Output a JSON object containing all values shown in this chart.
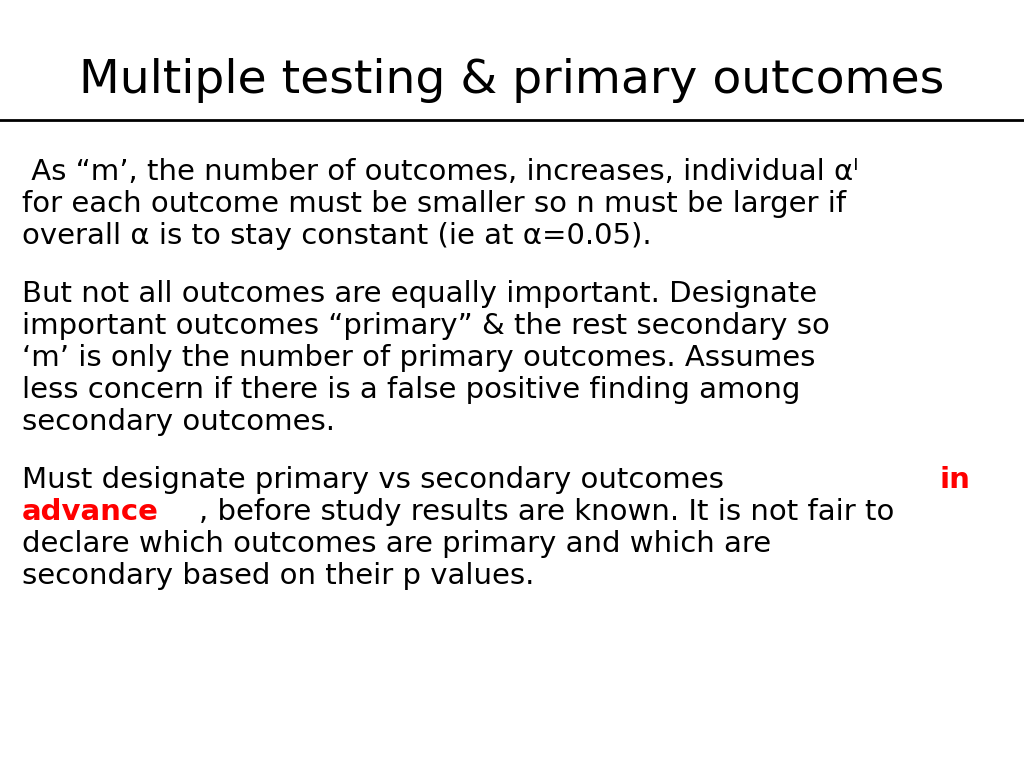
{
  "title": "Multiple testing & primary outcomes",
  "title_fontsize": 34,
  "title_color": "#000000",
  "bg_color": "#ffffff",
  "text_color": "#000000",
  "red_color": "#ff0000",
  "body_fontsize": 21,
  "para1_lines": [
    " As “m’, the number of outcomes, increases, individual αᴵ",
    "for each outcome must be smaller so n must be larger if",
    "overall α is to stay constant (ie at α=0.05)."
  ],
  "para2_lines": [
    "But not all outcomes are equally important. Designate",
    "important outcomes “primary” & the rest secondary so",
    "‘m’ is only the number of primary outcomes. Assumes",
    "less concern if there is a false positive finding among",
    "secondary outcomes."
  ],
  "para3_line1_black": "Must designate primary vs secondary outcomes ",
  "para3_line1_red": "in",
  "para3_line2_red": "advance",
  "para3_line2_black": ", before study results are known. It is not fair to",
  "para3_line3": "declare which outcomes are primary and which are",
  "para3_line4": "secondary based on their p values."
}
